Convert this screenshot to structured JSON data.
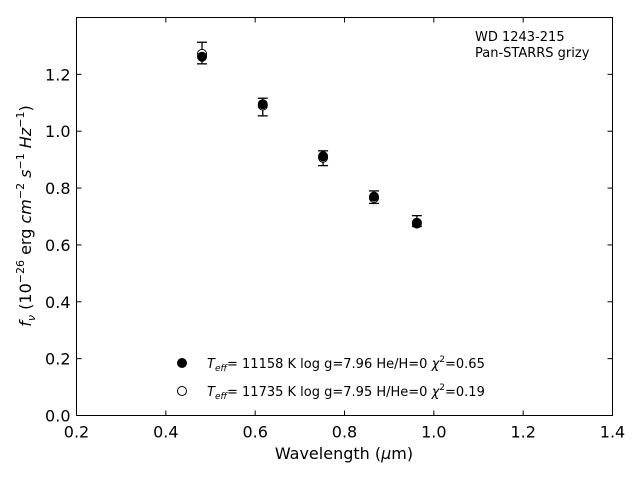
{
  "chart_data": {
    "type": "scatter",
    "annotation": [
      "WD 1243-215",
      "Pan-STARRS grizy"
    ],
    "xlabel": {
      "prefix": "Wavelength (",
      "mu": "μ",
      "suffix": "m)"
    },
    "ylabel": {
      "f": "f",
      "nu": "ν",
      "text1": " (10",
      "exp1": "−26",
      "text2": " erg ",
      "cm": "cm",
      "exp2": "−2",
      "s": " s",
      "exp3": "−1",
      "hz": " Hz",
      "exp4": "−1",
      "close": ")"
    },
    "xlim": [
      0.2,
      1.4
    ],
    "ylim": [
      0.0,
      1.4
    ],
    "xticks": [
      0.2,
      0.4,
      0.6,
      0.8,
      1.0,
      1.2,
      1.4
    ],
    "yticks": [
      0.0,
      0.2,
      0.4,
      0.6,
      0.8,
      1.0,
      1.2
    ],
    "xtick_labels": [
      "0.2",
      "0.4",
      "0.6",
      "0.8",
      "1.0",
      "1.2",
      "1.4"
    ],
    "ytick_labels": [
      "0.0",
      "0.2",
      "0.4",
      "0.6",
      "0.8",
      "1.0",
      "1.2"
    ],
    "observed": {
      "x": [
        0.481,
        0.617,
        0.752,
        0.866,
        0.962
      ],
      "y": [
        1.275,
        1.085,
        0.905,
        0.768,
        0.684
      ],
      "yerr": [
        0.038,
        0.031,
        0.026,
        0.022,
        0.019
      ]
    },
    "series": [
      {
        "name_parts": [
          "T",
          "eff",
          "= 11158 K  log g=7.96  He/H=0  ",
          "χ",
          "2",
          "=0.65"
        ],
        "marker": "filled",
        "x": [
          0.481,
          0.617,
          0.752,
          0.866,
          0.962
        ],
        "y": [
          1.262,
          1.095,
          0.912,
          0.77,
          0.675
        ]
      },
      {
        "name_parts": [
          "T",
          "eff",
          "= 11735 K  log g=7.95  H/He=0  ",
          "χ",
          "2",
          "=0.19"
        ],
        "marker": "open",
        "x": [
          0.481,
          0.617,
          0.752,
          0.866,
          0.962
        ],
        "y": [
          1.272,
          1.09,
          0.907,
          0.765,
          0.678
        ]
      }
    ],
    "legend_position": "lower-center",
    "grid": false
  }
}
